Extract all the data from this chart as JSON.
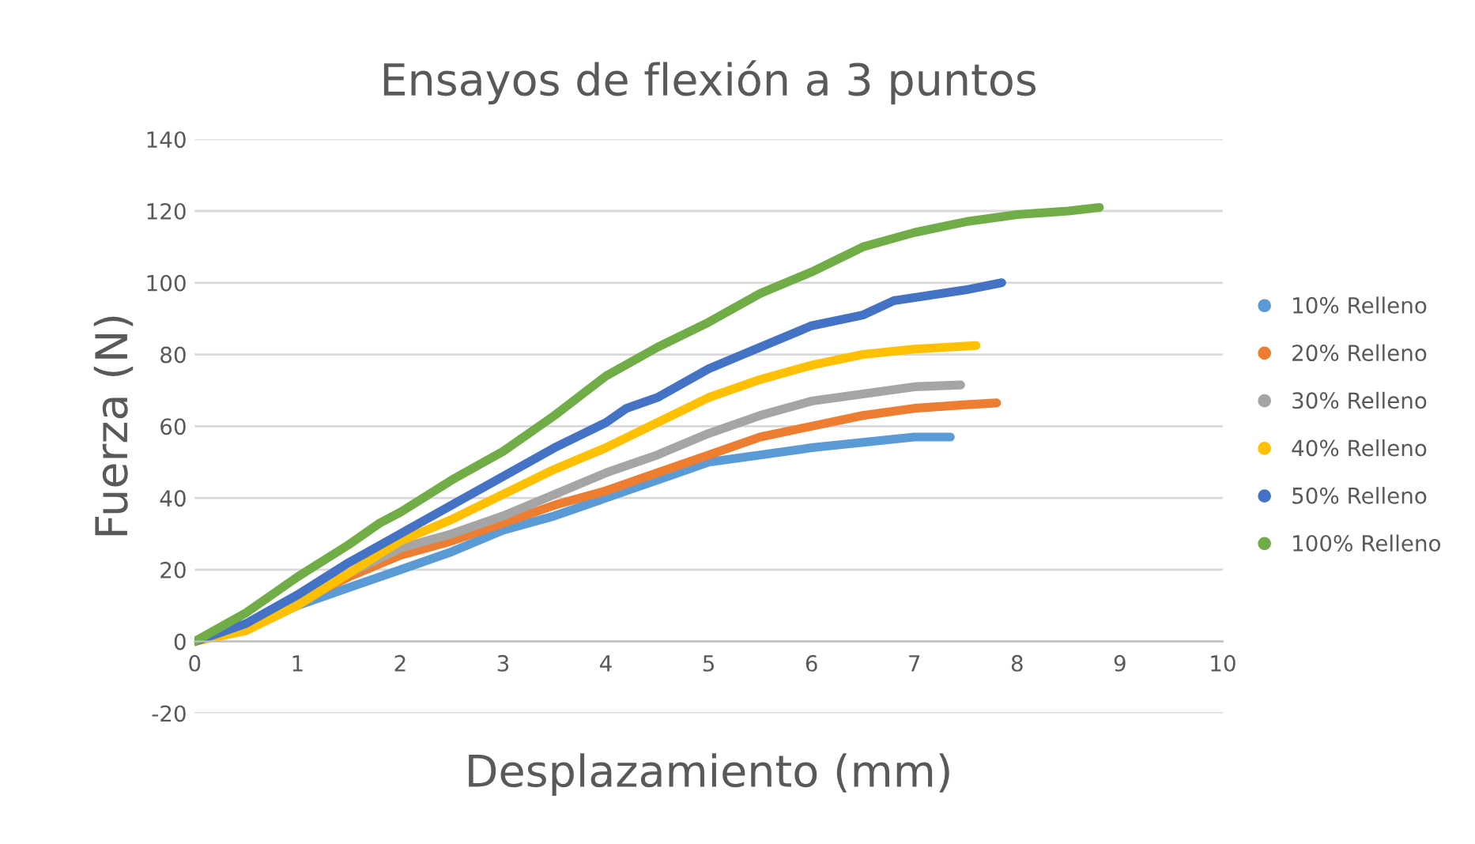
{
  "chart_data": {
    "type": "line",
    "title": "Ensayos de flexión a 3 puntos",
    "xlabel": "Desplazamiento (mm)",
    "ylabel": "Fuerza (N)",
    "xlim": [
      0,
      10
    ],
    "xticks": [
      0,
      1,
      2,
      3,
      4,
      5,
      6,
      7,
      8,
      9,
      10
    ],
    "ylim": [
      -20,
      140
    ],
    "yticks": [
      -20,
      0,
      20,
      40,
      60,
      80,
      100,
      120,
      140
    ],
    "grid": "y",
    "legend": "right",
    "marker": "none",
    "line_style": "solid",
    "series": [
      {
        "name": "10% Relleno",
        "color": "#5b9bd5",
        "x": [
          0,
          0.5,
          1,
          1.5,
          2,
          2.5,
          3,
          3.5,
          4,
          4.5,
          5,
          5.5,
          6,
          6.5,
          7,
          7.35
        ],
        "values": [
          0,
          4,
          10,
          15,
          20,
          25,
          31,
          35,
          40,
          45,
          50,
          52,
          54,
          55.5,
          57,
          57
        ]
      },
      {
        "name": "20% Relleno",
        "color": "#ed7d31",
        "x": [
          0,
          0.5,
          1,
          1.5,
          2,
          2.5,
          3,
          3.5,
          4,
          4.5,
          5,
          5.5,
          6,
          6.5,
          7,
          7.5,
          7.8
        ],
        "values": [
          0,
          4,
          11,
          18,
          24,
          28,
          33,
          38,
          42,
          47,
          52,
          57,
          60,
          63,
          65,
          66,
          66.5
        ]
      },
      {
        "name": "30% Relleno",
        "color": "#a5a5a5",
        "x": [
          0,
          0.5,
          1,
          1.5,
          2,
          2.5,
          3,
          3.5,
          4,
          4.5,
          5,
          5.5,
          6,
          6.5,
          7,
          7.45
        ],
        "values": [
          0,
          4,
          11,
          19,
          26,
          30,
          35,
          41,
          47,
          52,
          58,
          63,
          67,
          69,
          71,
          71.5
        ]
      },
      {
        "name": "40% Relleno",
        "color": "#ffc000",
        "x": [
          0,
          0.5,
          1,
          1.5,
          2,
          2.5,
          3,
          3.5,
          4,
          4.5,
          5,
          5.5,
          6,
          6.5,
          7,
          7.6
        ],
        "values": [
          0,
          3,
          10,
          19,
          28,
          34,
          41,
          48,
          54,
          61,
          68,
          73,
          77,
          80,
          81.5,
          82.5
        ]
      },
      {
        "name": "50% Relleno",
        "color": "#4472c4",
        "x": [
          0,
          0.5,
          1,
          1.5,
          2,
          2.5,
          3,
          3.5,
          4,
          4.2,
          4.5,
          5,
          5.5,
          6,
          6.5,
          6.8,
          7.5,
          7.85
        ],
        "values": [
          0,
          5,
          13,
          22,
          30,
          38,
          46,
          54,
          61,
          65,
          68,
          76,
          82,
          88,
          91,
          95,
          98,
          100
        ]
      },
      {
        "name": "100% Relleno",
        "color": "#70ad47",
        "x": [
          0,
          0.5,
          1,
          1.5,
          1.8,
          2,
          2.5,
          3,
          3.5,
          4,
          4.5,
          5,
          5.5,
          6,
          6.5,
          7,
          7.5,
          8,
          8.5,
          8.8
        ],
        "values": [
          0,
          8,
          18,
          27,
          33,
          36,
          45,
          53,
          63,
          74,
          82,
          89,
          97,
          103,
          110,
          114,
          117,
          119,
          120,
          121
        ]
      }
    ]
  }
}
